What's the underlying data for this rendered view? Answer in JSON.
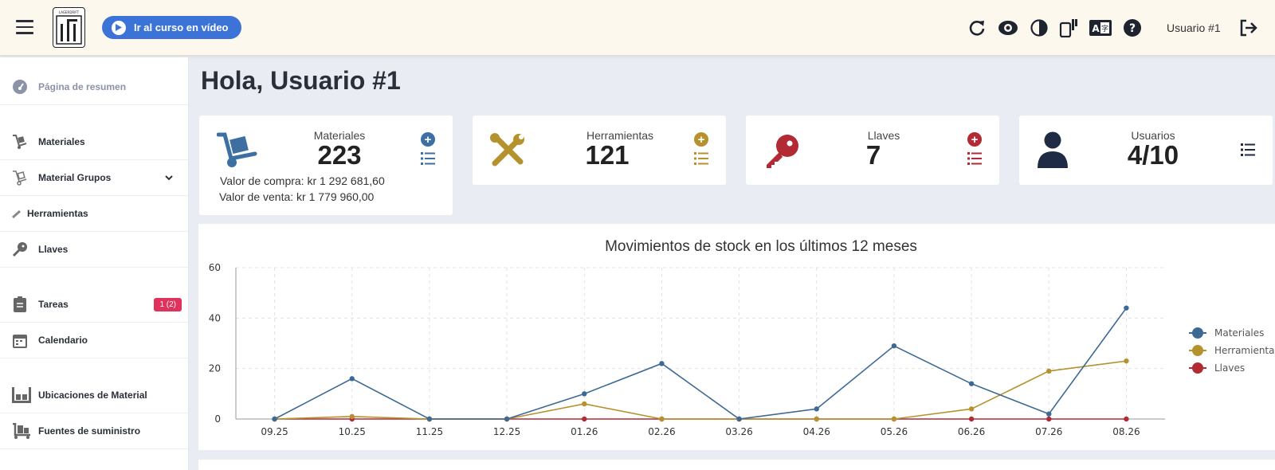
{
  "header": {
    "video_button_label": "Ir al curso en vídeo",
    "user_label": "Usuario #1",
    "logo_text": "LAGERDRIFT"
  },
  "sidebar": {
    "items": [
      {
        "label": "Página de resumen",
        "icon": "dashboard-icon"
      },
      {
        "label": "Materiales",
        "icon": "hand-truck-icon"
      },
      {
        "label": "Material Grupos",
        "icon": "hand-truck-outline-icon"
      },
      {
        "label": "Herramientas",
        "icon": "wrench-icon"
      },
      {
        "label": "Llaves",
        "icon": "key-icon"
      },
      {
        "label": "Tareas",
        "icon": "clipboard-icon",
        "badge": "1 (2)"
      },
      {
        "label": "Calendario",
        "icon": "calendar-icon"
      },
      {
        "label": "Ubicaciones de Material",
        "icon": "warehouse-icon"
      },
      {
        "label": "Fuentes de suministro",
        "icon": "dolly-icon"
      }
    ]
  },
  "greeting": "Hola, Usuario #1",
  "cards": {
    "materiales": {
      "title": "Materiales",
      "count": "223",
      "purchase": "Valor de compra: kr 1 292 681,60",
      "sale": "Valor de venta: kr 1 779 960,00",
      "color": "#3d6fa3"
    },
    "herramientas": {
      "title": "Herramientas",
      "count": "121",
      "color": "#b5922e"
    },
    "llaves": {
      "title": "Llaves",
      "count": "7",
      "color": "#b22a34"
    },
    "usuarios": {
      "title": "Usuarios",
      "count": "4/10",
      "color": "#1f2a44"
    }
  },
  "chart_data": {
    "type": "line",
    "title": "Movimientos de stock en los últimos 12 meses",
    "categories": [
      "09.25",
      "10.25",
      "11.25",
      "12.25",
      "01.26",
      "02.26",
      "03.26",
      "04.26",
      "05.26",
      "06.26",
      "07.26",
      "08.26"
    ],
    "ylim": [
      0,
      60
    ],
    "yticks": [
      0,
      20,
      40,
      60
    ],
    "grid": true,
    "legend_position": "right",
    "series": [
      {
        "name": "Materiales",
        "color": "#3d6a95",
        "values": [
          0,
          16,
          0,
          0,
          10,
          22,
          0,
          4,
          29,
          14,
          2,
          44
        ]
      },
      {
        "name": "Herramientas",
        "color": "#b5922e",
        "values": [
          0,
          1,
          0,
          0,
          6,
          0,
          0,
          0,
          0,
          4,
          19,
          23
        ]
      },
      {
        "name": "Llaves",
        "color": "#b22a34",
        "values": [
          0,
          0,
          0,
          0,
          0,
          0,
          0,
          0,
          0,
          0,
          0,
          0
        ]
      }
    ]
  }
}
